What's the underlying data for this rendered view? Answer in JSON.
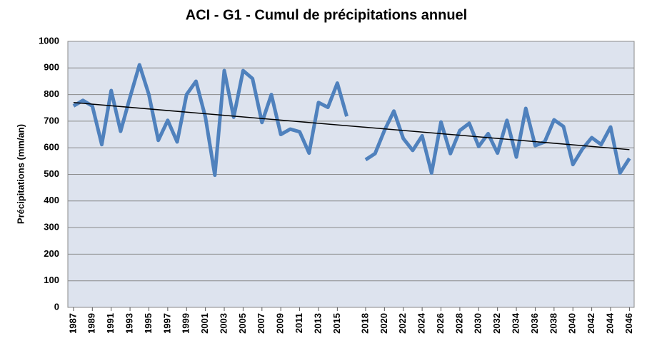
{
  "chart_data": {
    "type": "line",
    "title": "ACI - G1 - Cumul de précipitations annuel",
    "y_label": "Précipitations (mm/an)",
    "x": [
      1987,
      1988,
      1989,
      1990,
      1991,
      1992,
      1993,
      1994,
      1995,
      1996,
      1997,
      1998,
      1999,
      2000,
      2001,
      2002,
      2003,
      2004,
      2005,
      2006,
      2007,
      2008,
      2009,
      2010,
      2011,
      2012,
      2013,
      2014,
      2015,
      2016,
      2017,
      2018,
      2019,
      2020,
      2021,
      2022,
      2023,
      2024,
      2025,
      2026,
      2027,
      2028,
      2029,
      2030,
      2031,
      2032,
      2033,
      2034,
      2035,
      2036,
      2037,
      2038,
      2039,
      2040,
      2041,
      2042,
      2043,
      2044,
      2045,
      2046
    ],
    "series": [
      {
        "color": "#4f81bd",
        "values": [
          757,
          778,
          757,
          612,
          815,
          662,
          790,
          912,
          800,
          628,
          703,
          622,
          800,
          850,
          715,
          497,
          890,
          715,
          890,
          860,
          695,
          800,
          650,
          670,
          660,
          580,
          770,
          752,
          843,
          718,
          null,
          555,
          578,
          665,
          738,
          635,
          590,
          645,
          505,
          697,
          578,
          665,
          692,
          605,
          653,
          580,
          703,
          565,
          748,
          608,
          622,
          705,
          680,
          537,
          595,
          638,
          612,
          678,
          505,
          560
        ]
      }
    ],
    "trend": {
      "color": "#000000",
      "x": [
        1987,
        2046
      ],
      "values": [
        770,
        593
      ]
    },
    "xlim": [
      1986.4,
      2046.5
    ],
    "xticks": [
      1987,
      1989,
      1991,
      1993,
      1995,
      1997,
      1999,
      2001,
      2003,
      2005,
      2007,
      2009,
      2011,
      2013,
      2015,
      2018,
      2020,
      2022,
      2024,
      2026,
      2028,
      2030,
      2032,
      2034,
      2036,
      2038,
      2040,
      2042,
      2044,
      2046
    ],
    "ylim": [
      0,
      1000
    ],
    "yticks": [
      0,
      100,
      200,
      300,
      400,
      500,
      600,
      700,
      800,
      900,
      1000
    ],
    "grid": true
  }
}
